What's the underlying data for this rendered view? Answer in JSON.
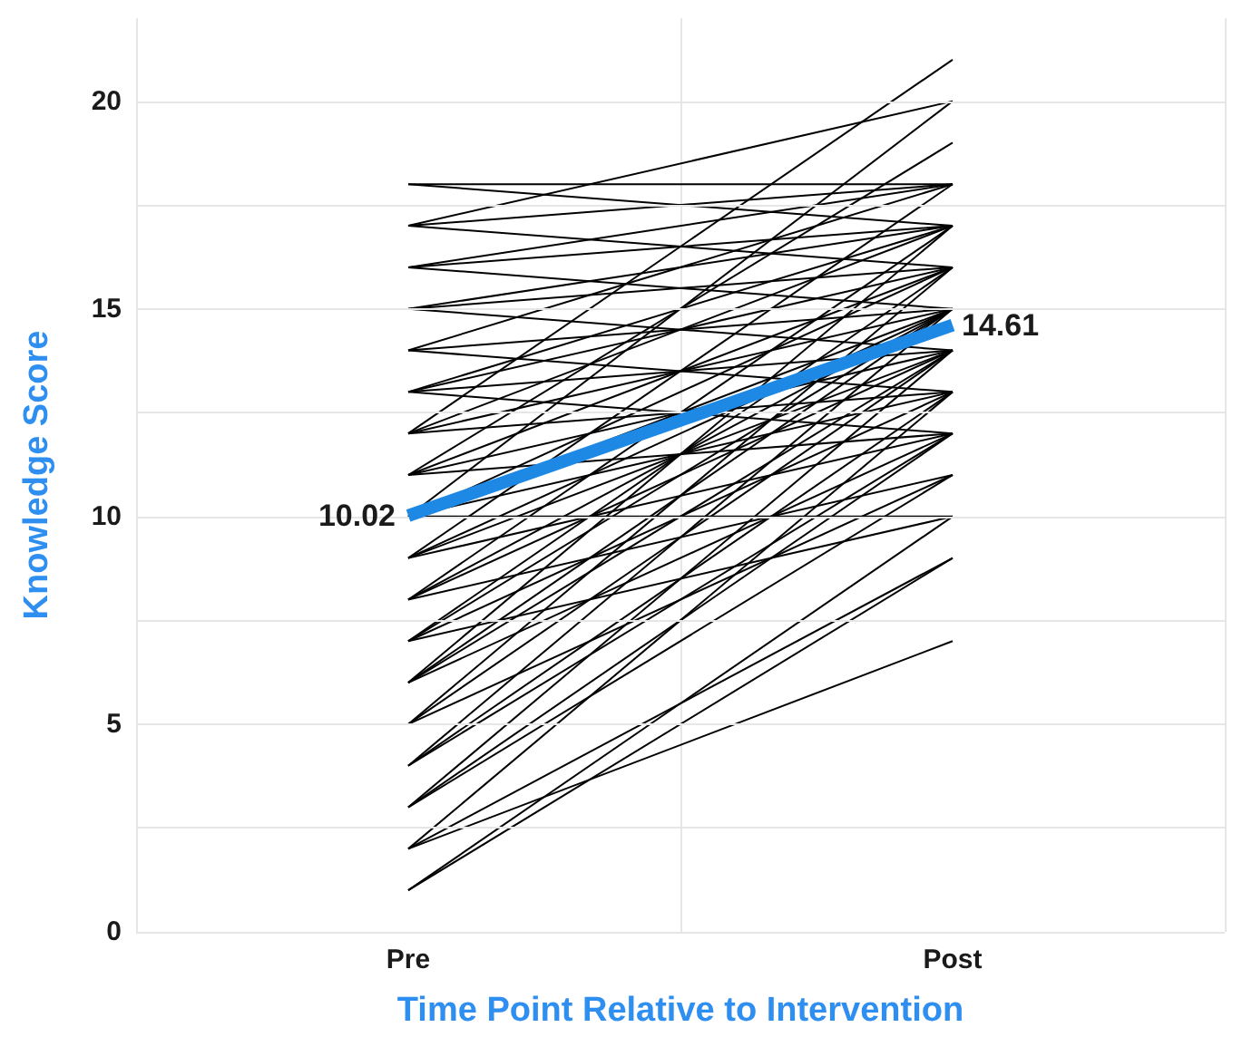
{
  "chart_data": {
    "type": "line",
    "xlabel": "Time Point Relative to Intervention",
    "ylabel": "Knowledge Score",
    "categories": [
      "Pre",
      "Post"
    ],
    "ylim": [
      0,
      22
    ],
    "yticks": [
      0,
      {
        "value": 2.5,
        "label": null
      },
      5,
      {
        "value": 7.5,
        "label": null
      },
      10,
      {
        "value": 12.5,
        "label": null
      },
      15,
      {
        "value": 17.5,
        "label": null
      },
      20
    ],
    "grid": true,
    "series": [
      {
        "color": "#000000",
        "values": [
          18,
          18
        ]
      },
      {
        "color": "#000000",
        "values": [
          18,
          17
        ]
      },
      {
        "color": "#000000",
        "values": [
          17,
          18
        ]
      },
      {
        "color": "#000000",
        "values": [
          17,
          20
        ]
      },
      {
        "color": "#000000",
        "values": [
          17,
          16
        ]
      },
      {
        "color": "#000000",
        "values": [
          16,
          17
        ]
      },
      {
        "color": "#000000",
        "values": [
          16,
          18
        ]
      },
      {
        "color": "#000000",
        "values": [
          16,
          15
        ]
      },
      {
        "color": "#000000",
        "values": [
          15,
          17
        ]
      },
      {
        "color": "#000000",
        "values": [
          15,
          16
        ]
      },
      {
        "color": "#000000",
        "values": [
          15,
          14
        ]
      },
      {
        "color": "#000000",
        "values": [
          14,
          18
        ]
      },
      {
        "color": "#000000",
        "values": [
          14,
          15
        ]
      },
      {
        "color": "#000000",
        "values": [
          14,
          13
        ]
      },
      {
        "color": "#000000",
        "values": [
          13,
          17
        ]
      },
      {
        "color": "#000000",
        "values": [
          13,
          16
        ]
      },
      {
        "color": "#000000",
        "values": [
          13,
          14
        ]
      },
      {
        "color": "#000000",
        "values": [
          13,
          12
        ]
      },
      {
        "color": "#000000",
        "values": [
          12,
          21
        ]
      },
      {
        "color": "#000000",
        "values": [
          12,
          17
        ]
      },
      {
        "color": "#000000",
        "values": [
          12,
          15
        ]
      },
      {
        "color": "#000000",
        "values": [
          12,
          13
        ]
      },
      {
        "color": "#000000",
        "values": [
          11,
          19
        ]
      },
      {
        "color": "#000000",
        "values": [
          11,
          16
        ]
      },
      {
        "color": "#000000",
        "values": [
          11,
          14
        ]
      },
      {
        "color": "#000000",
        "values": [
          11,
          12
        ]
      },
      {
        "color": "#000000",
        "values": [
          10,
          20
        ]
      },
      {
        "color": "#000000",
        "values": [
          10,
          16
        ]
      },
      {
        "color": "#000000",
        "values": [
          10,
          15
        ]
      },
      {
        "color": "#000000",
        "values": [
          10,
          13
        ]
      },
      {
        "color": "#000000",
        "values": [
          10,
          10
        ]
      },
      {
        "color": "#000000",
        "values": [
          9,
          18
        ]
      },
      {
        "color": "#000000",
        "values": [
          9,
          15
        ]
      },
      {
        "color": "#000000",
        "values": [
          9,
          14
        ]
      },
      {
        "color": "#000000",
        "values": [
          9,
          12
        ]
      },
      {
        "color": "#000000",
        "values": [
          8,
          17
        ]
      },
      {
        "color": "#000000",
        "values": [
          8,
          15
        ]
      },
      {
        "color": "#000000",
        "values": [
          8,
          14
        ]
      },
      {
        "color": "#000000",
        "values": [
          8,
          11
        ]
      },
      {
        "color": "#000000",
        "values": [
          7,
          16
        ]
      },
      {
        "color": "#000000",
        "values": [
          7,
          15
        ]
      },
      {
        "color": "#000000",
        "values": [
          7,
          13
        ]
      },
      {
        "color": "#000000",
        "values": [
          7,
          10
        ]
      },
      {
        "color": "#000000",
        "values": [
          6,
          17
        ]
      },
      {
        "color": "#000000",
        "values": [
          6,
          15
        ]
      },
      {
        "color": "#000000",
        "values": [
          6,
          14
        ]
      },
      {
        "color": "#000000",
        "values": [
          6,
          12
        ]
      },
      {
        "color": "#000000",
        "values": [
          5,
          16
        ]
      },
      {
        "color": "#000000",
        "values": [
          5,
          14
        ]
      },
      {
        "color": "#000000",
        "values": [
          5,
          11
        ]
      },
      {
        "color": "#000000",
        "values": [
          4,
          15
        ]
      },
      {
        "color": "#000000",
        "values": [
          4,
          13
        ]
      },
      {
        "color": "#000000",
        "values": [
          4,
          12
        ]
      },
      {
        "color": "#000000",
        "values": [
          3,
          14
        ]
      },
      {
        "color": "#000000",
        "values": [
          3,
          12
        ]
      },
      {
        "color": "#000000",
        "values": [
          3,
          11
        ]
      },
      {
        "color": "#000000",
        "values": [
          2,
          13
        ]
      },
      {
        "color": "#000000",
        "values": [
          2,
          9
        ]
      },
      {
        "color": "#000000",
        "values": [
          2,
          7
        ]
      },
      {
        "color": "#000000",
        "values": [
          1,
          10
        ]
      },
      {
        "color": "#000000",
        "values": [
          1,
          9
        ]
      },
      {
        "color": "#1e88e5",
        "values": [
          10.02,
          14.61
        ],
        "value_labels": [
          "10.02",
          "14.61"
        ]
      }
    ]
  }
}
